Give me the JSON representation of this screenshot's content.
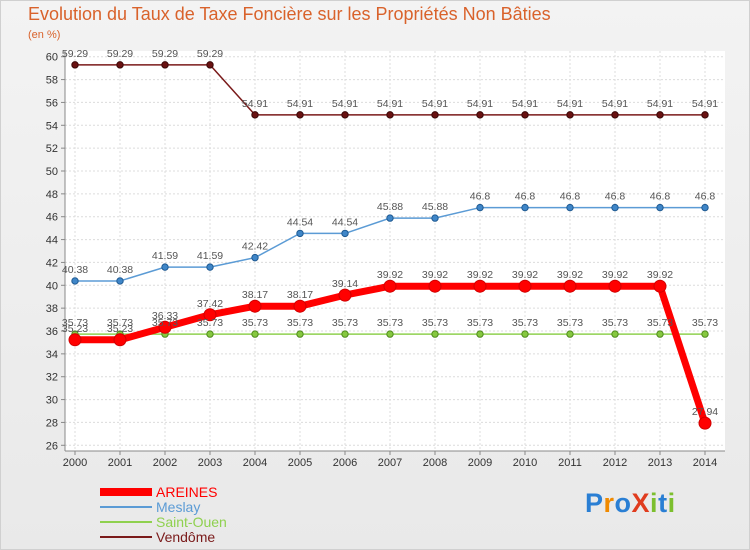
{
  "title": "Evolution du Taux de Taxe Foncière sur les Propriétés Non Bâties",
  "unit_label": "(en %)",
  "logo": {
    "text": "ProXiti",
    "colors": [
      "#2a7fd4",
      "#f08a00",
      "#2a7fd4",
      "#e03c1e",
      "#7cbf2e",
      "#2a7fd4",
      "#7cbf2e"
    ]
  },
  "chart_data": {
    "type": "line",
    "title": "Evolution du Taux de Taxe Foncière sur les Propriétés Non Bâties",
    "ylabel": "(en %)",
    "xlabel": "",
    "categories": [
      "2000",
      "2001",
      "2002",
      "2003",
      "2004",
      "2005",
      "2006",
      "2007",
      "2008",
      "2009",
      "2010",
      "2011",
      "2012",
      "2013",
      "2014"
    ],
    "ylim": [
      26,
      60
    ],
    "yticks": [
      26,
      28,
      30,
      32,
      34,
      36,
      38,
      40,
      42,
      44,
      46,
      48,
      50,
      52,
      54,
      56,
      58,
      60
    ],
    "grid": true,
    "legend_position": "bottom-left",
    "series": [
      {
        "name": "Vendôme",
        "color": "#7a1a1a",
        "values": [
          59.29,
          59.29,
          59.29,
          59.29,
          54.91,
          54.91,
          54.91,
          54.91,
          54.91,
          54.91,
          54.91,
          54.91,
          54.91,
          54.91,
          54.91
        ],
        "labels": [
          "59.29",
          "59.29",
          "59.29",
          "59.29",
          "54.91",
          "54.91",
          "54.91",
          "54.91",
          "54.91",
          "54.91",
          "54.91",
          "54.91",
          "54.91",
          "54.91",
          "54.91"
        ]
      },
      {
        "name": "Meslay",
        "color": "#5b9bd5",
        "values": [
          40.38,
          40.38,
          41.59,
          41.59,
          42.42,
          44.54,
          44.54,
          45.88,
          45.88,
          46.8,
          46.8,
          46.8,
          46.8,
          46.8,
          46.8
        ],
        "labels": [
          "40.38",
          "40.38",
          "41.59",
          "41.59",
          "42.42",
          "44.54",
          "44.54",
          "45.88",
          "45.88",
          "46.8",
          "46.8",
          "46.8",
          "46.8",
          "46.8",
          "46.8"
        ]
      },
      {
        "name": "Saint-Ouen",
        "color": "#8fd14f",
        "values": [
          35.73,
          35.73,
          35.73,
          35.73,
          35.73,
          35.73,
          35.73,
          35.73,
          35.73,
          35.73,
          35.73,
          35.73,
          35.73,
          35.73,
          35.73
        ],
        "labels": [
          "35.73",
          "35.73",
          "35.73",
          "35.73",
          "35.73",
          "35.73",
          "35.73",
          "35.73",
          "35.73",
          "35.73",
          "35.73",
          "35.73",
          "35.73",
          "35.73",
          "35.73"
        ]
      },
      {
        "name": "AREINES",
        "color": "#ff0000",
        "values": [
          35.23,
          35.23,
          36.33,
          37.42,
          38.17,
          38.17,
          39.14,
          39.92,
          39.92,
          39.92,
          39.92,
          39.92,
          39.92,
          39.92,
          27.94
        ],
        "labels": [
          "35.23",
          "35.23",
          "36.33",
          "37.42",
          "38.17",
          "38.17",
          "39.14",
          "39.92",
          "39.92",
          "39.92",
          "39.92",
          "39.92",
          "39.92",
          "39.92",
          "27.94"
        ]
      }
    ],
    "legend": [
      "AREINES",
      "Meslay",
      "Saint-Ouen",
      "Vendôme"
    ]
  }
}
